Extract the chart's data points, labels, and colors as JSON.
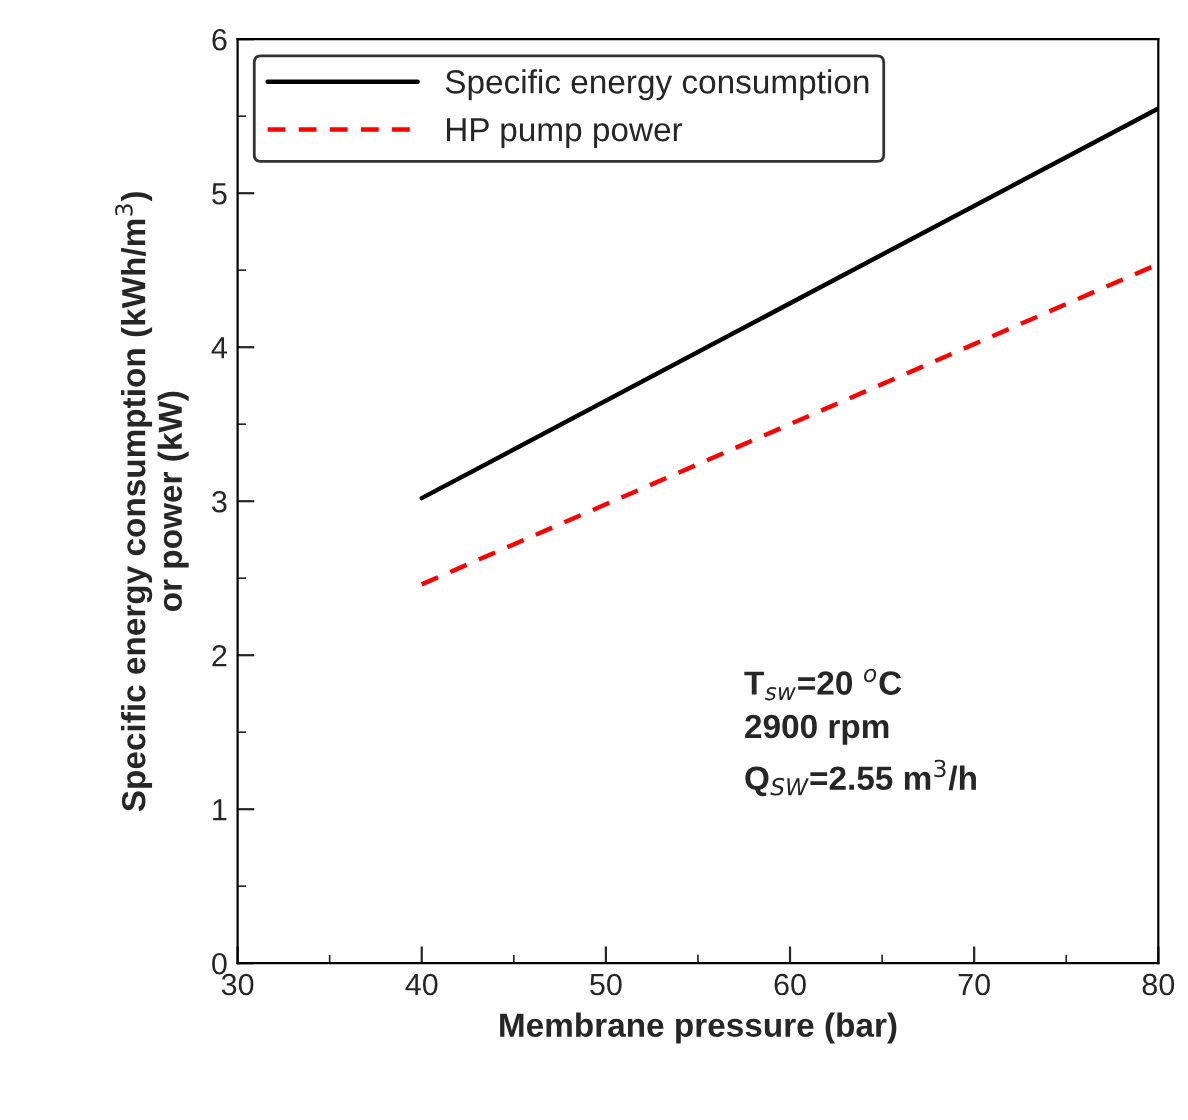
{
  "chart_data": {
    "type": "line",
    "xlabel": "Membrane pressure (bar)",
    "ylabel": "Specific energy consumption (kWh/m$^{3}$)\nor power (kW)",
    "x": [
      40,
      80
    ],
    "series": [
      {
        "name": "Specific energy consumption",
        "color": "#000000",
        "values": [
          3.02,
          5.55
        ],
        "line_style": "solid"
      },
      {
        "name": "HP pump power",
        "color": "#ff0000",
        "values": [
          2.46,
          4.54
        ],
        "line_style": "dashed"
      }
    ],
    "xlim": [
      30,
      80
    ],
    "xticks": [
      30,
      40,
      50,
      60,
      70,
      80
    ],
    "ylim": [
      0,
      6
    ],
    "yticks": [
      0,
      1,
      2,
      3,
      4,
      5,
      6
    ],
    "grid": false,
    "legend": "top left",
    "marker": "none",
    "annotations": [
      "T$_{sw}$=20 $^{o}$C\n2900 rpm\nQ$_{SW}$=2.55 m$^{3}$/h"
    ]
  }
}
